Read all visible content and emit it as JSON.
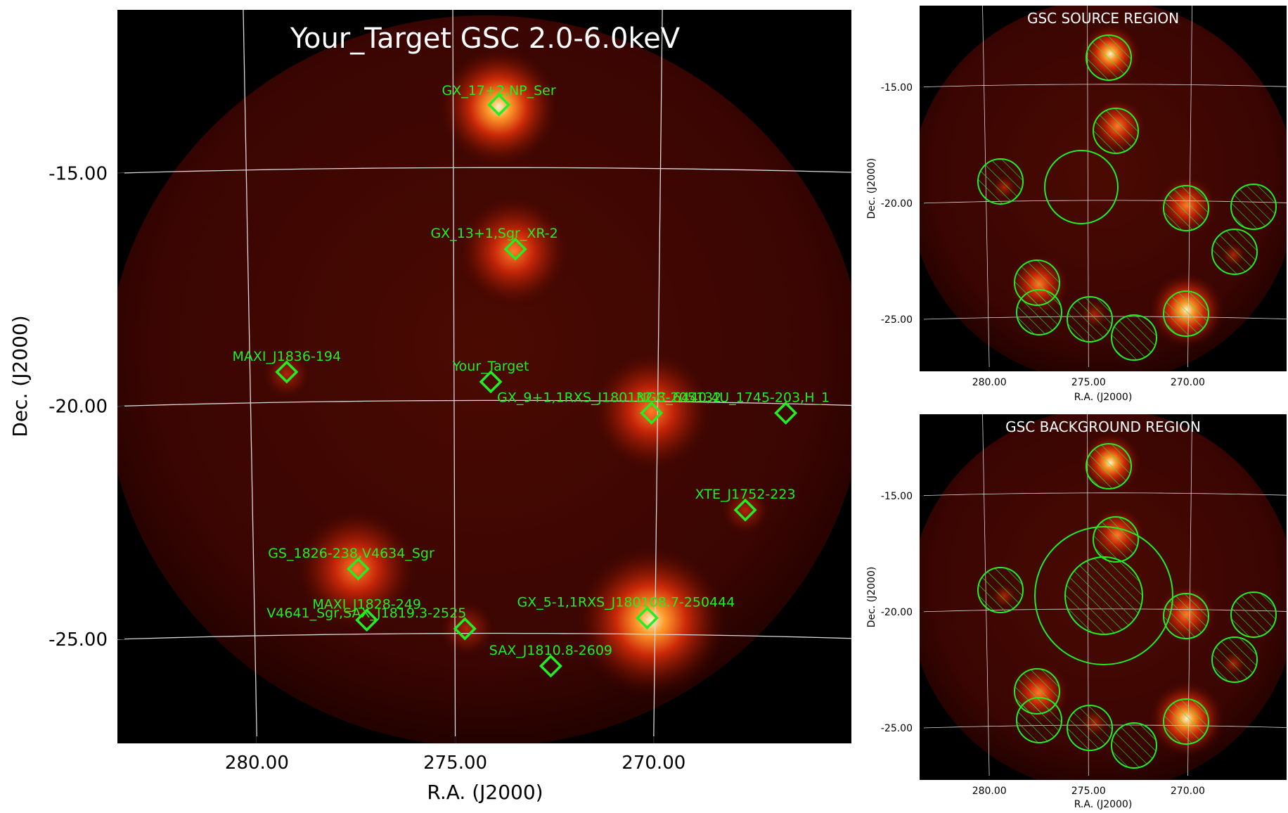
{
  "colors": {
    "marker": "#22ee22",
    "grid": "#d8d8d8",
    "background": "#000000",
    "text_on_image": "#ffffff",
    "axis_text": "#000000"
  },
  "chart_data": [
    {
      "id": "main",
      "type": "heatmap",
      "title": "Your_Target GSC 2.0-6.0keV",
      "xlabel": "R.A. (J2000)",
      "ylabel": "Dec. (J2000)",
      "xlim": [
        283.1,
        265.4
      ],
      "ylim": [
        -27.3,
        -11.55
      ],
      "x_ticks": [
        280.0,
        275.0,
        270.0
      ],
      "x_tick_labels": [
        "280.00",
        "275.00",
        "270.00"
      ],
      "y_ticks": [
        -15.0,
        -20.0,
        -25.0
      ],
      "y_tick_labels": [
        "-15.00",
        "-20.00",
        "-25.00"
      ],
      "grid": true,
      "sources": [
        {
          "name": "GX_17+2,NP_Ser",
          "ra": 273.9,
          "dec": -13.65
        },
        {
          "name": "GX_13+1,Sgr_XR-2",
          "ra": 273.5,
          "dec": -16.75
        },
        {
          "name": "MAXI_J1836-194",
          "ra": 279.1,
          "dec": -19.35
        },
        {
          "name": "Your_Target",
          "ra": 274.1,
          "dec": -19.6
        },
        {
          "name": "GX_9+1,1RXS_J180132.3-205132",
          "ra": 270.15,
          "dec": -20.25
        },
        {
          "name": "NGC_6440,4U_1745-203,H_1",
          "ra": 266.85,
          "dec": -20.2
        },
        {
          "name": "XTE_J1752-223",
          "ra": 267.8,
          "dec": -22.3
        },
        {
          "name": "GS_1826-238,V4634_Sgr",
          "ra": 277.4,
          "dec": -23.6
        },
        {
          "name": "MAXI_J1828-249",
          "ra": 277.2,
          "dec": -24.7
        },
        {
          "name": "V4641_Sgr,SAX_J1819.3-2525",
          "ra": 274.75,
          "dec": -24.9
        },
        {
          "name": "GX_5-1,1RXS_J180108.7-250444",
          "ra": 270.2,
          "dec": -24.65
        },
        {
          "name": "SAX_J1810.8-2609",
          "ra": 272.6,
          "dec": -25.7
        }
      ]
    },
    {
      "id": "source_region",
      "type": "heatmap",
      "title": "GSC SOURCE REGION",
      "xlabel": "R.A. (J2000)",
      "ylabel": "Dec. (J2000)",
      "x_tick_labels": [
        "280.00",
        "275.00",
        "270.00"
      ],
      "y_tick_labels": [
        "-15.00",
        "-20.00",
        "-25.00"
      ],
      "grid": true
    },
    {
      "id": "background_region",
      "type": "heatmap",
      "title": "GSC BACKGROUND REGION",
      "xlabel": "R.A. (J2000)",
      "ylabel": "Dec. (J2000)",
      "x_tick_labels": [
        "280.00",
        "275.00",
        "270.00"
      ],
      "y_tick_labels": [
        "-15.00",
        "-20.00",
        "-25.00"
      ],
      "grid": true
    }
  ]
}
